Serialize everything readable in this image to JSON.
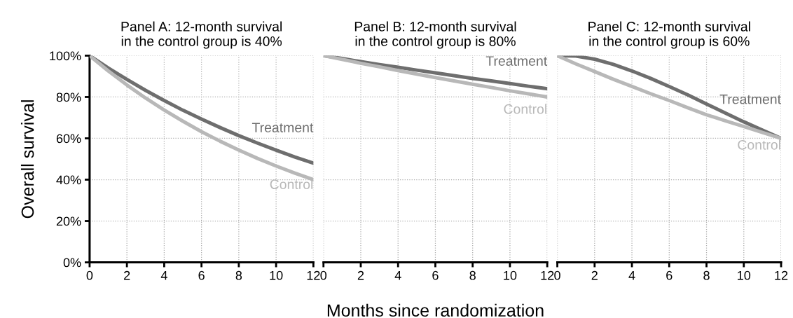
{
  "chart_data": [
    {
      "type": "line",
      "title": "Panel A: 12-month survival\nin the control group is 40%",
      "ylabel": "Overall survival",
      "x": [
        0,
        1,
        2,
        3,
        4,
        5,
        6,
        7,
        8,
        9,
        10,
        11,
        12
      ],
      "xlim": [
        0,
        12
      ],
      "xticks": [
        0,
        2,
        4,
        6,
        8,
        10,
        12
      ],
      "ylim": [
        0,
        100
      ],
      "yticks": [
        {
          "value": 0,
          "label": "0%"
        },
        {
          "value": 20,
          "label": "20%"
        },
        {
          "value": 40,
          "label": "40%"
        },
        {
          "value": 60,
          "label": "60%"
        },
        {
          "value": 80,
          "label": "80%"
        },
        {
          "value": 100,
          "label": "100%"
        }
      ],
      "grid": true,
      "marker": "none",
      "line_style": "solid",
      "series": [
        {
          "name": "Treatment",
          "color": "#6e6e6e",
          "values": [
            100,
            94,
            88.5,
            83.2,
            78.3,
            73.6,
            69.3,
            65.2,
            61.3,
            57.7,
            54.3,
            51.0,
            48
          ]
        },
        {
          "name": "Control",
          "color": "#b8b8b8",
          "values": [
            100,
            92.6,
            85.8,
            79.5,
            73.7,
            68.3,
            63.2,
            58.6,
            54.3,
            50.3,
            46.6,
            43.2,
            40
          ]
        }
      ]
    },
    {
      "type": "line",
      "title": "Panel B: 12-month survival\nin the control group is 80%",
      "xlabel": "Months since randomization",
      "x": [
        0,
        1,
        2,
        3,
        4,
        5,
        6,
        7,
        8,
        9,
        10,
        11,
        12
      ],
      "xlim": [
        0,
        12
      ],
      "xticks": [
        0,
        2,
        4,
        6,
        8,
        10,
        12
      ],
      "ylim": [
        0,
        100
      ],
      "tick_labels": "x",
      "grid": true,
      "marker": "none",
      "line_style": "solid",
      "series": [
        {
          "name": "Treatment",
          "color": "#6e6e6e",
          "values": [
            100,
            98.6,
            97.1,
            95.7,
            94.4,
            93.0,
            91.7,
            90.3,
            89.0,
            87.8,
            86.5,
            85.2,
            84
          ]
        },
        {
          "name": "Control",
          "color": "#b8b8b8",
          "values": [
            100,
            98.2,
            96.3,
            94.6,
            92.8,
            91.1,
            89.4,
            87.8,
            86.2,
            84.6,
            83.0,
            81.5,
            80
          ]
        }
      ]
    },
    {
      "type": "line",
      "title": "Panel C: 12-month survival\nin the control group is 60%",
      "x": [
        0,
        1,
        2,
        3,
        4,
        5,
        6,
        7,
        8,
        9,
        10,
        11,
        12
      ],
      "xlim": [
        0,
        12
      ],
      "xticks": [
        0,
        2,
        4,
        6,
        8,
        10,
        12
      ],
      "ylim": [
        0,
        100
      ],
      "tick_labels": "x",
      "grid": true,
      "marker": "none",
      "line_style": "solid",
      "series": [
        {
          "name": "Treatment",
          "color": "#6e6e6e",
          "values": [
            100,
            99.8,
            98.3,
            95.8,
            92.6,
            89,
            85.1,
            81,
            76.6,
            72.3,
            68,
            64,
            60
          ]
        },
        {
          "name": "Control",
          "color": "#b8b8b8",
          "values": [
            100,
            96,
            92.3,
            88.6,
            85.1,
            81.6,
            78.3,
            74.8,
            71.4,
            68.5,
            65.7,
            62.8,
            60
          ]
        }
      ]
    }
  ]
}
